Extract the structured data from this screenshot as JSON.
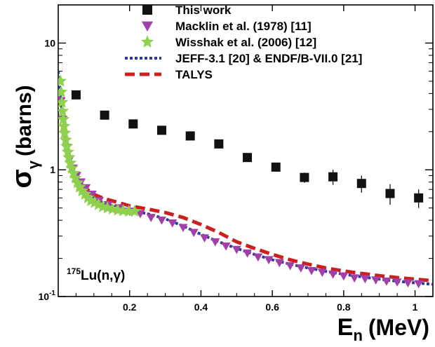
{
  "chart_data": {
    "type": "scatter",
    "title": "",
    "xlabel": {
      "main": "E",
      "sub": "n",
      "unit": "(MeV)"
    },
    "ylabel": {
      "main": "σ",
      "sub": "γ",
      "unit": "(barns)"
    },
    "xlim": [
      0.0,
      1.05
    ],
    "ylim": [
      0.1,
      20
    ],
    "y_scale": "log",
    "x_ticks": [
      0.2,
      0.4,
      0.6,
      0.8,
      1.0
    ],
    "x_tick_labels": [
      "0.2",
      "0.4",
      "0.6",
      "0.8",
      "1"
    ],
    "y_ticks": [
      0.1,
      1,
      10
    ],
    "y_tick_labels": [
      {
        "base": "10",
        "exp": "-1"
      },
      {
        "base": "1",
        "exp": ""
      },
      {
        "base": "10",
        "exp": ""
      }
    ],
    "annotation": {
      "superscript": "175",
      "text": "Lu(n,γ)"
    },
    "legend_position": "top-right",
    "series": [
      {
        "name": "This work",
        "kind": "markers",
        "marker": "square",
        "color": "#111111",
        "x": [
          0.05,
          0.13,
          0.21,
          0.29,
          0.37,
          0.45,
          0.53,
          0.61,
          0.69,
          0.77,
          0.85,
          0.93,
          1.01
        ],
        "y": [
          3.9,
          2.7,
          2.3,
          2.05,
          1.85,
          1.6,
          1.25,
          1.05,
          0.87,
          0.88,
          0.78,
          0.65,
          0.6
        ],
        "err": [
          0.12,
          0.1,
          0.09,
          0.08,
          0.07,
          0.07,
          0.06,
          0.06,
          0.08,
          0.12,
          0.12,
          0.12,
          0.1
        ]
      },
      {
        "name": "Macklin et al. (1978) [11]",
        "kind": "markers",
        "marker": "triangle-down",
        "color": "#a23fa8",
        "x": [
          0.008,
          0.013,
          0.018,
          0.025,
          0.033,
          0.042,
          0.052,
          0.064,
          0.078,
          0.095,
          0.115,
          0.14,
          0.17,
          0.2,
          0.23,
          0.26,
          0.29,
          0.32,
          0.35,
          0.38,
          0.41,
          0.44,
          0.47,
          0.5,
          0.53,
          0.56,
          0.59,
          0.62,
          0.65,
          0.68,
          0.71,
          0.74,
          0.77,
          0.8,
          0.83,
          0.86,
          0.89,
          0.92,
          0.95,
          0.98,
          1.01
        ],
        "y": [
          3.5,
          2.5,
          1.9,
          1.5,
          1.22,
          1.03,
          0.9,
          0.8,
          0.72,
          0.64,
          0.57,
          0.53,
          0.5,
          0.47,
          0.45,
          0.42,
          0.4,
          0.38,
          0.35,
          0.32,
          0.29,
          0.27,
          0.25,
          0.235,
          0.22,
          0.205,
          0.195,
          0.185,
          0.175,
          0.168,
          0.16,
          0.155,
          0.15,
          0.145,
          0.14,
          0.138,
          0.135,
          0.132,
          0.13,
          0.128,
          0.126
        ]
      },
      {
        "name": "Wisshak et al. (2006) [12]",
        "kind": "markers",
        "marker": "star",
        "color": "#8fd14f",
        "x": [
          0.006,
          0.008,
          0.01,
          0.012,
          0.014,
          0.016,
          0.018,
          0.021,
          0.024,
          0.027,
          0.03,
          0.034,
          0.038,
          0.043,
          0.048,
          0.054,
          0.06,
          0.067,
          0.075,
          0.083,
          0.092,
          0.102,
          0.113,
          0.125,
          0.138,
          0.152,
          0.167,
          0.182,
          0.198,
          0.214
        ],
        "y": [
          5.0,
          4.1,
          3.4,
          2.9,
          2.5,
          2.2,
          1.95,
          1.72,
          1.53,
          1.38,
          1.25,
          1.13,
          1.03,
          0.94,
          0.86,
          0.79,
          0.73,
          0.68,
          0.64,
          0.6,
          0.57,
          0.55,
          0.53,
          0.51,
          0.5,
          0.49,
          0.48,
          0.475,
          0.47,
          0.47
        ]
      },
      {
        "name": "JEFF-3.1 [20] & ENDF/B-VII.0 [21]",
        "kind": "line",
        "dash": "dotted",
        "color": "#2b3a9e",
        "x": [
          0.0,
          0.005,
          0.01,
          0.02,
          0.03,
          0.05,
          0.07,
          0.1,
          0.13,
          0.16,
          0.2,
          0.25,
          0.3,
          0.35,
          0.4,
          0.45,
          0.5,
          0.55,
          0.6,
          0.65,
          0.7,
          0.75,
          0.8,
          0.85,
          0.9,
          0.95,
          1.0,
          1.05
        ],
        "y": [
          6.0,
          4.3,
          3.0,
          1.7,
          1.25,
          0.9,
          0.72,
          0.6,
          0.54,
          0.51,
          0.48,
          0.45,
          0.41,
          0.36,
          0.31,
          0.27,
          0.24,
          0.215,
          0.195,
          0.18,
          0.168,
          0.158,
          0.15,
          0.143,
          0.137,
          0.132,
          0.128,
          0.125
        ]
      },
      {
        "name": "TALYS",
        "kind": "line",
        "dash": "dashed",
        "color": "#cc1f1f",
        "x": [
          0.04,
          0.05,
          0.07,
          0.1,
          0.13,
          0.16,
          0.2,
          0.25,
          0.3,
          0.35,
          0.4,
          0.45,
          0.5,
          0.55,
          0.6,
          0.65,
          0.7,
          0.75,
          0.8,
          0.85,
          0.9,
          0.95,
          1.0,
          1.05
        ],
        "y": [
          0.94,
          0.86,
          0.74,
          0.64,
          0.59,
          0.56,
          0.52,
          0.49,
          0.46,
          0.42,
          0.37,
          0.32,
          0.27,
          0.24,
          0.215,
          0.195,
          0.18,
          0.168,
          0.159,
          0.152,
          0.146,
          0.141,
          0.137,
          0.133
        ]
      }
    ]
  }
}
